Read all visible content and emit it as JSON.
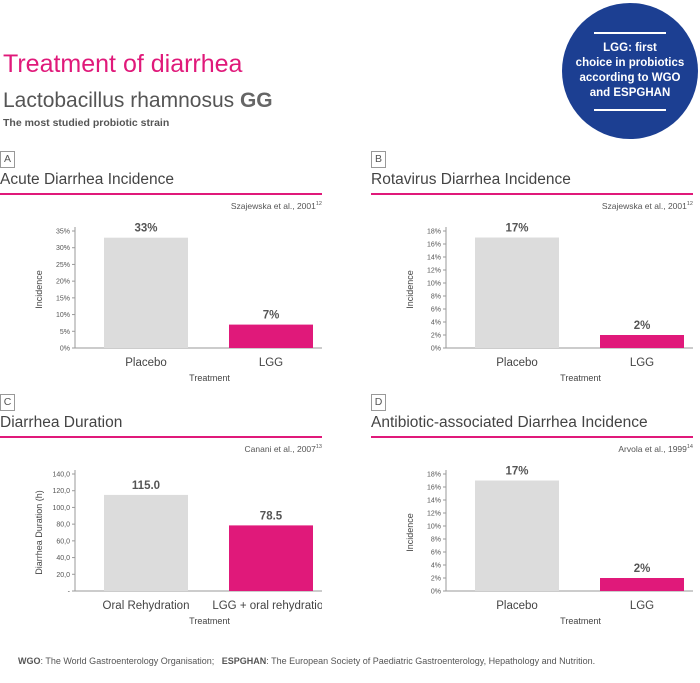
{
  "header": {
    "title": "Treatment of diarrhea",
    "subtitle_main": "Lactobacillus rhamnosus",
    "subtitle_bold": "GG",
    "tagline": "The most studied probiotic strain"
  },
  "badge": {
    "lines": [
      "LGG: first",
      "choice in probiotics",
      "according to WGO",
      "and ESPGHAN"
    ]
  },
  "colors": {
    "accent": "#e0197a",
    "placebo": "#dcdcdc",
    "badge": "#1c3f92"
  },
  "panels": [
    {
      "letter": "A",
      "title": "Acute Diarrhea Incidence",
      "cite": "Szajewska et al., 2001",
      "cite_sup": "12"
    },
    {
      "letter": "B",
      "title": "Rotavirus Diarrhea Incidence",
      "cite": "Szajewska et al., 2001",
      "cite_sup": "12"
    },
    {
      "letter": "C",
      "title": "Diarrhea Duration",
      "cite": "Canani et al., 2007",
      "cite_sup": "13"
    },
    {
      "letter": "D",
      "title": "Antibiotic-associated Diarrhea Incidence",
      "cite": "Arvola et al., 1999",
      "cite_sup": "14"
    }
  ],
  "chart_data": [
    {
      "type": "bar",
      "title": "Acute Diarrhea Incidence",
      "categories": [
        "Placebo",
        "LGG"
      ],
      "values": [
        33,
        7
      ],
      "value_labels": [
        "33%",
        "7%"
      ],
      "xlabel": "Treatment",
      "ylabel": "Incidence",
      "ylim": [
        0,
        35
      ],
      "yticks": [
        0,
        5,
        10,
        15,
        20,
        25,
        30,
        35
      ],
      "ytick_labels": [
        "0%",
        "5%",
        "10%",
        "15%",
        "20%",
        "25%",
        "30%",
        "35%"
      ]
    },
    {
      "type": "bar",
      "title": "Rotavirus Diarrhea Incidence",
      "categories": [
        "Placebo",
        "LGG"
      ],
      "values": [
        17,
        2
      ],
      "value_labels": [
        "17%",
        "2%"
      ],
      "xlabel": "Treatment",
      "ylabel": "Incidence",
      "ylim": [
        0,
        18
      ],
      "yticks": [
        0,
        2,
        4,
        6,
        8,
        10,
        12,
        14,
        16,
        18
      ],
      "ytick_labels": [
        "0%",
        "2%",
        "4%",
        "6%",
        "8%",
        "10%",
        "12%",
        "14%",
        "16%",
        "18%"
      ]
    },
    {
      "type": "bar",
      "title": "Diarrhea Duration",
      "categories": [
        "Oral Rehydration",
        "LGG + oral rehydration"
      ],
      "values": [
        115.0,
        78.5
      ],
      "value_labels": [
        "115.0",
        "78.5"
      ],
      "xlabel": "Treatment",
      "ylabel": "Diarrhea Duration (h)",
      "ylim": [
        0,
        140
      ],
      "yticks": [
        0,
        20,
        40,
        60,
        80,
        100,
        120,
        140
      ],
      "ytick_labels": [
        "-",
        "20,0",
        "40,0",
        "60,0",
        "80,0",
        "100,0",
        "120,0",
        "140,0"
      ]
    },
    {
      "type": "bar",
      "title": "Antibiotic-associated Diarrhea Incidence",
      "categories": [
        "Placebo",
        "LGG"
      ],
      "values": [
        17,
        2
      ],
      "value_labels": [
        "17%",
        "2%"
      ],
      "xlabel": "Treatment",
      "ylabel": "Incidence",
      "ylim": [
        0,
        18
      ],
      "yticks": [
        0,
        2,
        4,
        6,
        8,
        10,
        12,
        14,
        16,
        18
      ],
      "ytick_labels": [
        "0%",
        "2%",
        "4%",
        "6%",
        "8%",
        "10%",
        "12%",
        "14%",
        "16%",
        "18%"
      ]
    }
  ],
  "footer": {
    "wgo_abbr": "WGO",
    "wgo_text": ": The World Gastroenterology Organisation;",
    "espghan_abbr": "ESPGHAN",
    "espghan_text": ": The European Society of Paediatric Gastroenterology, Hepathology and Nutrition."
  }
}
